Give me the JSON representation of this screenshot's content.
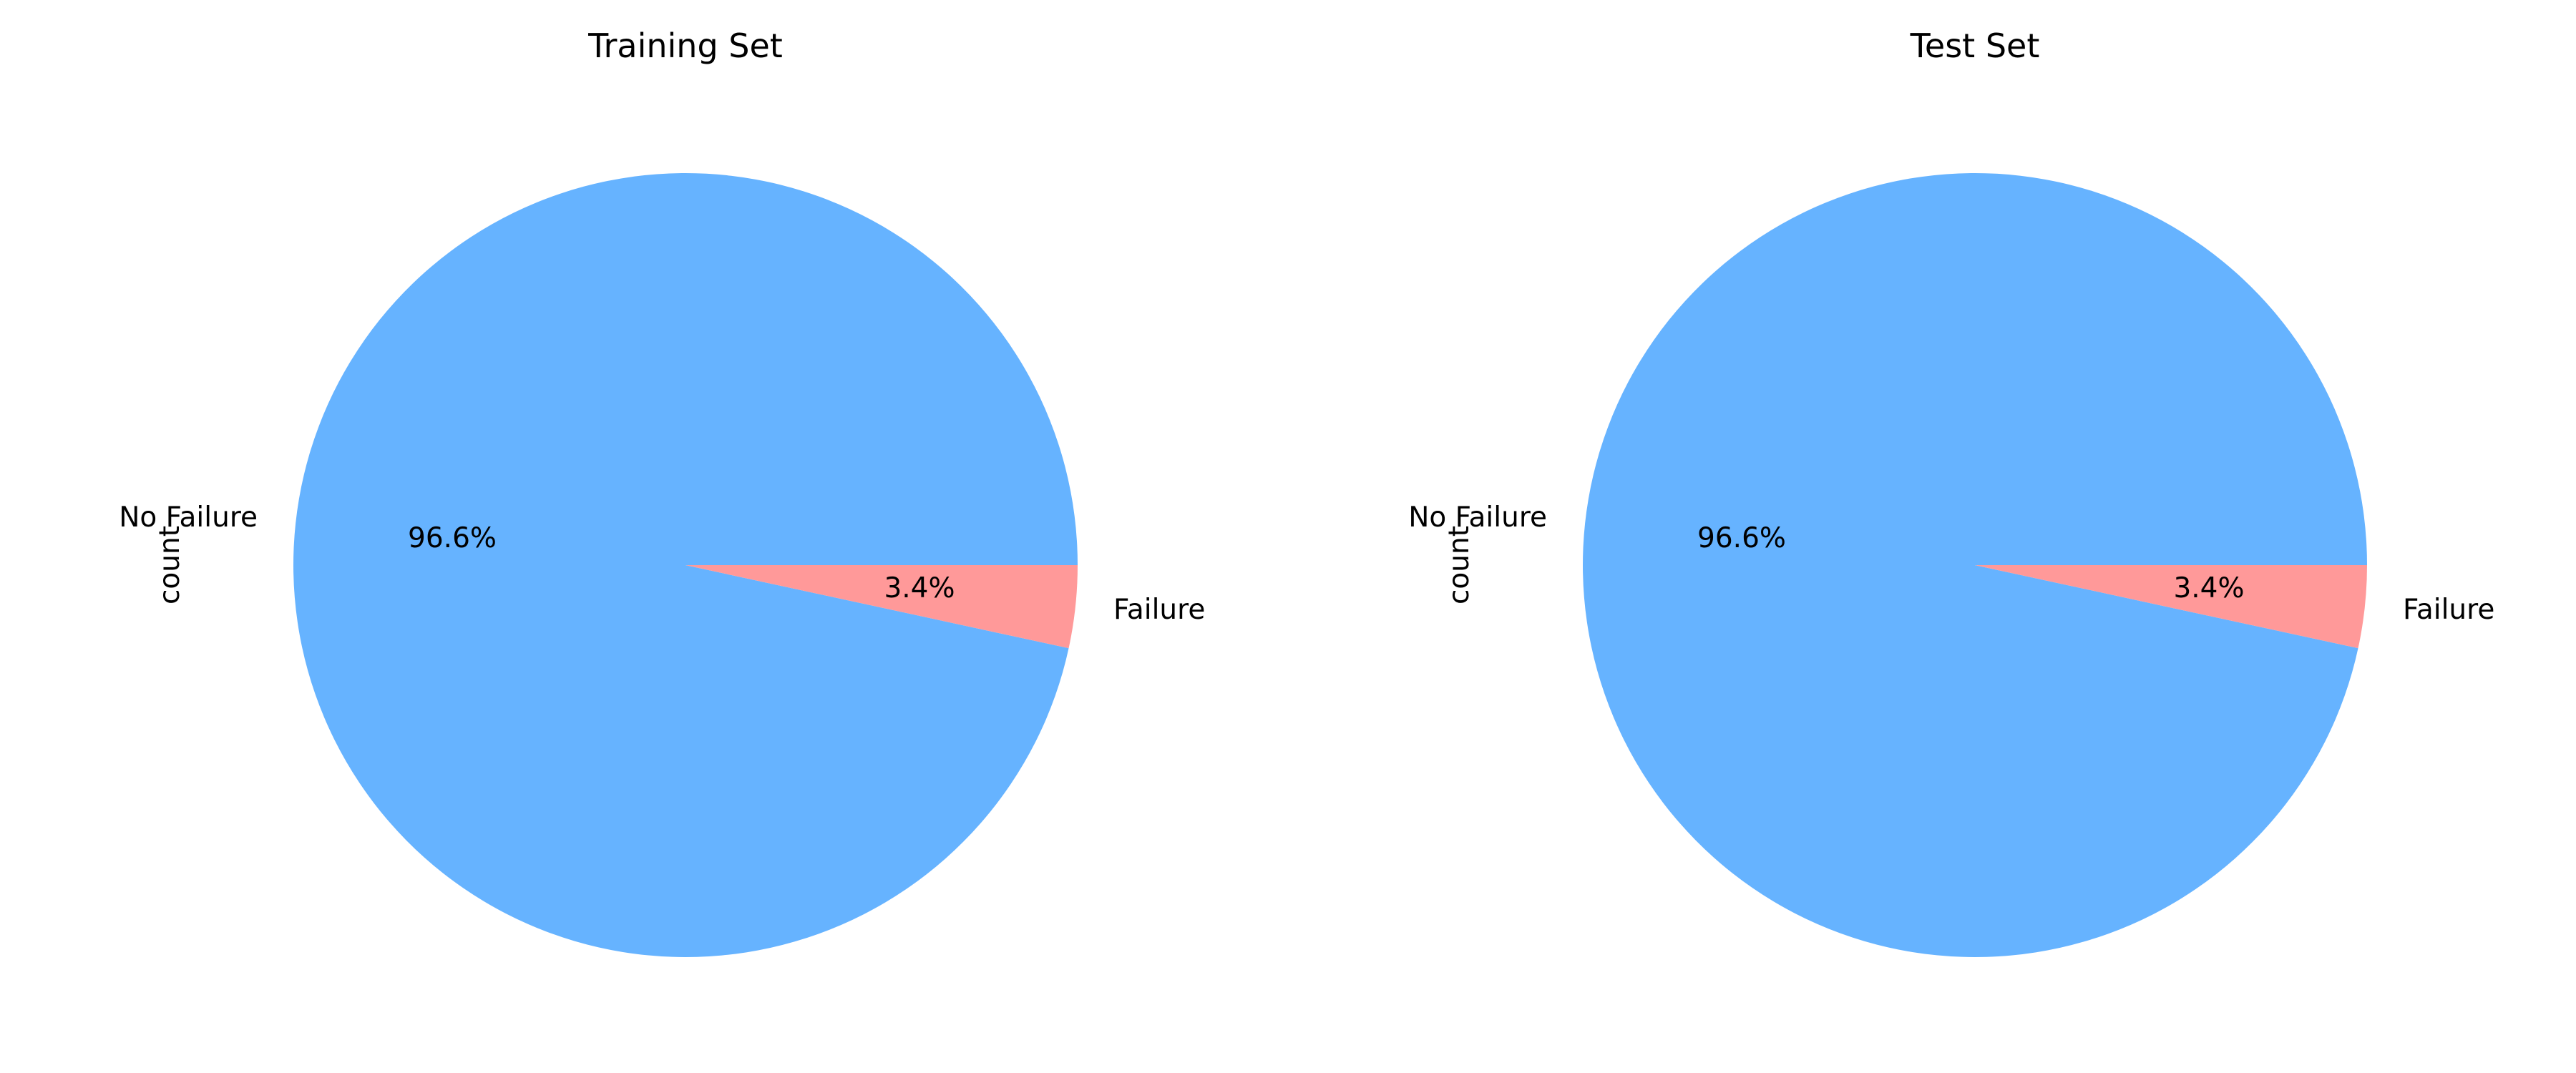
{
  "chart_data": [
    {
      "type": "pie",
      "title": "Training Set",
      "ylabel": "count",
      "categories": [
        "No Failure",
        "Failure"
      ],
      "values": [
        96.6,
        3.4
      ],
      "value_labels": [
        "96.6%",
        "3.4%"
      ],
      "colors": [
        "#66b3ff",
        "#ff9999"
      ],
      "start_angle_deg": 0,
      "direction": "counterclockwise",
      "legend": "none"
    },
    {
      "type": "pie",
      "title": "Test Set",
      "ylabel": "count",
      "categories": [
        "No Failure",
        "Failure"
      ],
      "values": [
        96.6,
        3.4
      ],
      "value_labels": [
        "96.6%",
        "3.4%"
      ],
      "colors": [
        "#66b3ff",
        "#ff9999"
      ],
      "start_angle_deg": 0,
      "direction": "counterclockwise",
      "legend": "none"
    }
  ]
}
